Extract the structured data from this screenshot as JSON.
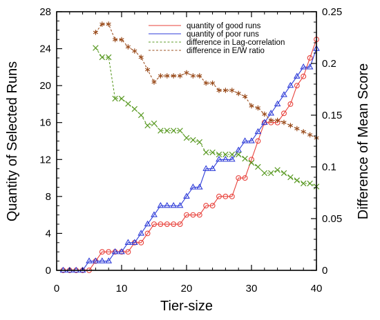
{
  "chart_data": {
    "type": "line",
    "title": "",
    "xlabel": "Tier-size",
    "ylabel_left": "Quantity of Selected Runs",
    "ylabel_right": "Difference of Mean Score",
    "xlim": [
      0,
      40
    ],
    "ylim_left": [
      0,
      28
    ],
    "ylim_right": [
      0,
      0.25
    ],
    "xticks": [
      0,
      10,
      20,
      30,
      40
    ],
    "yticks_left": [
      0,
      4,
      8,
      12,
      16,
      20,
      24,
      28
    ],
    "yticks_right": [
      0,
      0.05,
      0.1,
      0.15,
      0.2,
      0.25
    ],
    "grid": false,
    "legend_position": "top-right",
    "series": [
      {
        "name": "quantity of good runs",
        "axis": "left",
        "color": "#e8403a",
        "style": "solid",
        "marker": "circle",
        "x": [
          1,
          2,
          3,
          4,
          5,
          6,
          7,
          8,
          9,
          10,
          11,
          12,
          13,
          14,
          15,
          16,
          17,
          18,
          19,
          20,
          21,
          22,
          23,
          24,
          25,
          26,
          27,
          28,
          29,
          30,
          31,
          32,
          33,
          34,
          35,
          36,
          37,
          38,
          39,
          40
        ],
        "values": [
          0,
          0,
          0,
          0,
          0,
          1,
          2,
          2,
          2,
          2,
          2,
          3,
          3,
          4,
          5,
          5,
          5,
          5,
          5,
          6,
          6,
          6,
          7,
          7,
          8,
          8,
          8,
          10,
          10,
          12,
          14,
          16,
          16,
          16,
          17,
          18,
          20,
          21,
          23,
          25
        ]
      },
      {
        "name": "quantity of poor runs",
        "axis": "left",
        "color": "#2d3bd8",
        "style": "solid",
        "marker": "triangle",
        "x": [
          1,
          2,
          3,
          4,
          5,
          6,
          7,
          8,
          9,
          10,
          11,
          12,
          13,
          14,
          15,
          16,
          17,
          18,
          19,
          20,
          21,
          22,
          23,
          24,
          25,
          26,
          27,
          28,
          29,
          30,
          31,
          32,
          33,
          34,
          35,
          36,
          37,
          38,
          39,
          40
        ],
        "values": [
          0,
          0,
          0,
          0,
          1,
          1,
          1,
          1,
          2,
          2,
          3,
          3,
          4,
          5,
          6,
          7,
          7,
          7,
          7,
          8,
          9,
          9,
          11,
          11,
          12,
          12,
          12,
          13,
          14,
          14,
          15,
          16,
          17,
          18,
          19,
          20,
          21,
          22,
          22,
          24
        ]
      },
      {
        "name": "difference in Lag-correlation",
        "axis": "right",
        "color": "#5a9a24",
        "style": "dashed",
        "marker": "x",
        "x": [
          6,
          7,
          8,
          9,
          10,
          11,
          12,
          13,
          14,
          15,
          16,
          17,
          18,
          19,
          20,
          21,
          22,
          23,
          24,
          25,
          26,
          27,
          28,
          29,
          30,
          31,
          32,
          33,
          34,
          35,
          36,
          37,
          38,
          39,
          40
        ],
        "values": [
          0.215,
          0.206,
          0.206,
          0.166,
          0.166,
          0.161,
          0.156,
          0.15,
          0.14,
          0.142,
          0.135,
          0.135,
          0.135,
          0.135,
          0.128,
          0.126,
          0.124,
          0.114,
          0.114,
          0.112,
          0.112,
          0.112,
          0.112,
          0.108,
          0.104,
          0.1,
          0.094,
          0.094,
          0.097,
          0.094,
          0.09,
          0.087,
          0.084,
          0.084,
          0.081
        ]
      },
      {
        "name": "difference in E/W ratio",
        "axis": "right",
        "color": "#9a4c1c",
        "style": "dashed",
        "marker": "asterisk",
        "x": [
          6,
          7,
          8,
          9,
          10,
          11,
          12,
          13,
          14,
          15,
          16,
          17,
          18,
          19,
          20,
          21,
          22,
          23,
          24,
          25,
          26,
          27,
          28,
          29,
          30,
          31,
          32,
          33,
          34,
          35,
          36,
          37,
          38,
          39,
          40
        ],
        "values": [
          0.23,
          0.238,
          0.238,
          0.223,
          0.223,
          0.216,
          0.212,
          0.206,
          0.194,
          0.182,
          0.188,
          0.188,
          0.188,
          0.188,
          0.191,
          0.188,
          0.188,
          0.181,
          0.181,
          0.174,
          0.174,
          0.174,
          0.171,
          0.168,
          0.159,
          0.157,
          0.151,
          0.145,
          0.145,
          0.143,
          0.14,
          0.137,
          0.134,
          0.131,
          0.128
        ]
      }
    ]
  }
}
